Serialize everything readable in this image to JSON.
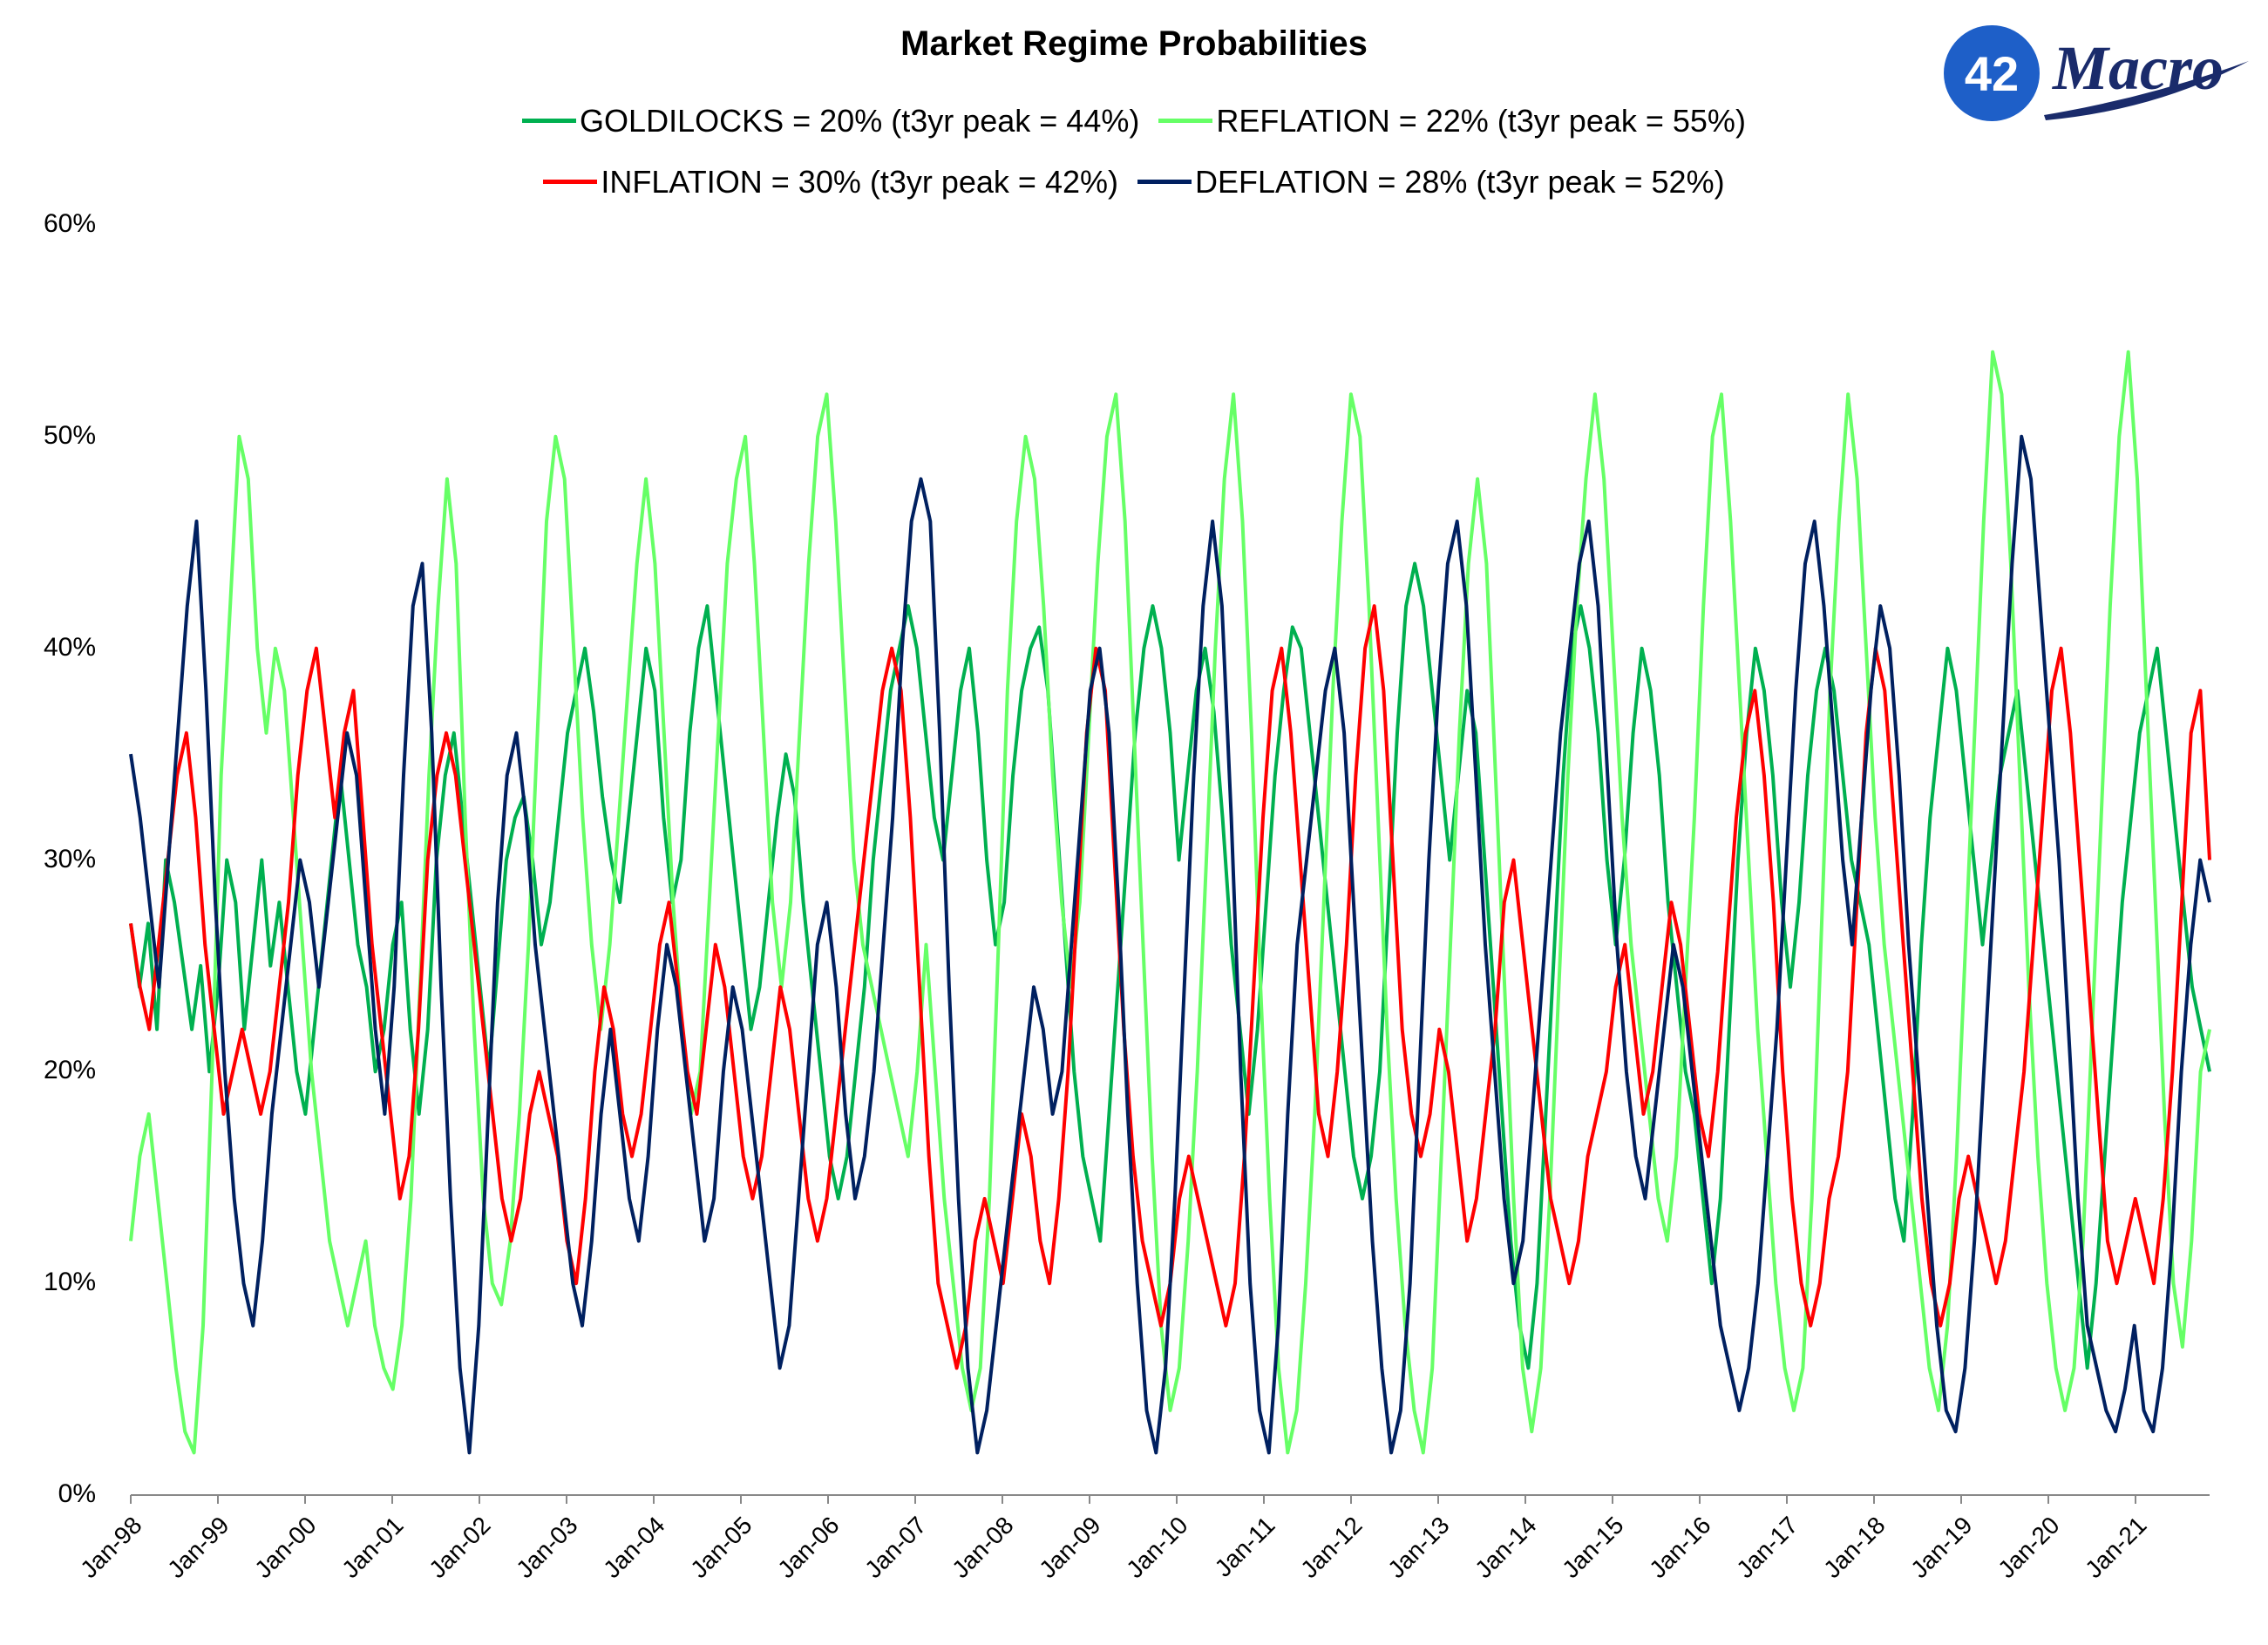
{
  "chart_data": {
    "type": "line",
    "title": "Market Regime Probabilities",
    "xlabel": "",
    "ylabel": "",
    "ylim": [
      0,
      0.6
    ],
    "yticks": [
      "0%",
      "10%",
      "20%",
      "30%",
      "40%",
      "50%",
      "60%"
    ],
    "x_range": [
      "1998-01",
      "2021-11"
    ],
    "x_ticks": [
      "Jan-98",
      "Jan-99",
      "Jan-00",
      "Jan-01",
      "Jan-02",
      "Jan-03",
      "Jan-04",
      "Jan-05",
      "Jan-06",
      "Jan-07",
      "Jan-08",
      "Jan-09",
      "Jan-10",
      "Jan-11",
      "Jan-12",
      "Jan-13",
      "Jan-14",
      "Jan-15",
      "Jan-16",
      "Jan-17",
      "Jan-18",
      "Jan-19",
      "Jan-20",
      "Jan-21"
    ],
    "grid": false,
    "legend_position": "top-center",
    "series": [
      {
        "name": "GOLDILOCKS",
        "legend": "GOLDILOCKS = 20% (t3yr peak = 44%)",
        "color": "#00b050",
        "values": [
          0.27,
          0.24,
          0.27,
          0.22,
          0.3,
          0.28,
          0.25,
          0.22,
          0.25,
          0.2,
          0.24,
          0.3,
          0.28,
          0.22,
          0.26,
          0.3,
          0.25,
          0.28,
          0.24,
          0.2,
          0.18,
          0.22,
          0.26,
          0.3,
          0.34,
          0.3,
          0.26,
          0.24,
          0.2,
          0.22,
          0.26,
          0.28,
          0.22,
          0.18,
          0.22,
          0.3,
          0.34,
          0.36,
          0.32,
          0.28,
          0.24,
          0.2,
          0.25,
          0.3,
          0.32,
          0.33,
          0.3,
          0.26,
          0.28,
          0.32,
          0.36,
          0.38,
          0.4,
          0.37,
          0.33,
          0.3,
          0.28,
          0.32,
          0.36,
          0.4,
          0.38,
          0.32,
          0.28,
          0.3,
          0.36,
          0.4,
          0.42,
          0.38,
          0.34,
          0.3,
          0.26,
          0.22,
          0.24,
          0.28,
          0.32,
          0.35,
          0.33,
          0.28,
          0.24,
          0.2,
          0.16,
          0.14,
          0.16,
          0.2,
          0.24,
          0.3,
          0.34,
          0.38,
          0.4,
          0.42,
          0.4,
          0.36,
          0.32,
          0.3,
          0.34,
          0.38,
          0.4,
          0.36,
          0.3,
          0.26,
          0.28,
          0.34,
          0.38,
          0.4,
          0.41,
          0.38,
          0.32,
          0.26,
          0.2,
          0.16,
          0.14,
          0.12,
          0.18,
          0.24,
          0.3,
          0.36,
          0.4,
          0.42,
          0.4,
          0.36,
          0.3,
          0.34,
          0.38,
          0.4,
          0.37,
          0.32,
          0.26,
          0.22,
          0.18,
          0.22,
          0.28,
          0.34,
          0.38,
          0.41,
          0.4,
          0.36,
          0.32,
          0.28,
          0.24,
          0.2,
          0.16,
          0.14,
          0.16,
          0.2,
          0.28,
          0.36,
          0.42,
          0.44,
          0.42,
          0.38,
          0.34,
          0.3,
          0.34,
          0.38,
          0.36,
          0.3,
          0.24,
          0.18,
          0.12,
          0.08,
          0.06,
          0.1,
          0.18,
          0.26,
          0.34,
          0.4,
          0.42,
          0.4,
          0.36,
          0.3,
          0.26,
          0.3,
          0.36,
          0.4,
          0.38,
          0.34,
          0.28,
          0.24,
          0.2,
          0.18,
          0.14,
          0.1,
          0.14,
          0.22,
          0.3,
          0.36,
          0.4,
          0.38,
          0.34,
          0.28,
          0.24,
          0.28,
          0.34,
          0.38,
          0.4,
          0.38,
          0.34,
          0.3,
          0.28,
          0.26,
          0.22,
          0.18,
          0.14,
          0.12,
          0.18,
          0.26,
          0.32,
          0.36,
          0.4,
          0.38,
          0.34,
          0.3,
          0.26,
          0.3,
          0.34,
          0.36,
          0.38,
          0.34,
          0.3,
          0.26,
          0.22,
          0.18,
          0.14,
          0.1,
          0.06,
          0.1,
          0.16,
          0.22,
          0.28,
          0.32,
          0.36,
          0.38,
          0.4,
          0.36,
          0.32,
          0.28,
          0.24,
          0.22,
          0.2
        ]
      },
      {
        "name": "REFLATION",
        "legend": "REFLATION = 22% (t3yr peak = 55%)",
        "color": "#66ff66",
        "values": [
          0.12,
          0.16,
          0.18,
          0.14,
          0.1,
          0.06,
          0.03,
          0.02,
          0.08,
          0.2,
          0.34,
          0.42,
          0.5,
          0.48,
          0.4,
          0.36,
          0.4,
          0.38,
          0.32,
          0.26,
          0.2,
          0.16,
          0.12,
          0.1,
          0.08,
          0.1,
          0.12,
          0.08,
          0.06,
          0.05,
          0.08,
          0.14,
          0.24,
          0.34,
          0.42,
          0.48,
          0.44,
          0.32,
          0.22,
          0.14,
          0.1,
          0.09,
          0.12,
          0.18,
          0.26,
          0.36,
          0.46,
          0.5,
          0.48,
          0.4,
          0.32,
          0.26,
          0.22,
          0.26,
          0.32,
          0.38,
          0.44,
          0.48,
          0.44,
          0.36,
          0.28,
          0.22,
          0.18,
          0.2,
          0.28,
          0.36,
          0.44,
          0.48,
          0.5,
          0.44,
          0.36,
          0.28,
          0.24,
          0.28,
          0.36,
          0.44,
          0.5,
          0.52,
          0.46,
          0.38,
          0.3,
          0.26,
          0.24,
          0.22,
          0.2,
          0.18,
          0.16,
          0.2,
          0.26,
          0.2,
          0.14,
          0.1,
          0.06,
          0.04,
          0.06,
          0.14,
          0.26,
          0.38,
          0.46,
          0.5,
          0.48,
          0.42,
          0.34,
          0.28,
          0.24,
          0.28,
          0.36,
          0.44,
          0.5,
          0.52,
          0.46,
          0.36,
          0.26,
          0.16,
          0.08,
          0.04,
          0.06,
          0.12,
          0.2,
          0.3,
          0.4,
          0.48,
          0.52,
          0.46,
          0.36,
          0.24,
          0.14,
          0.06,
          0.02,
          0.04,
          0.1,
          0.18,
          0.28,
          0.38,
          0.46,
          0.52,
          0.5,
          0.42,
          0.32,
          0.22,
          0.14,
          0.08,
          0.04,
          0.02,
          0.06,
          0.16,
          0.26,
          0.36,
          0.44,
          0.48,
          0.44,
          0.34,
          0.24,
          0.14,
          0.06,
          0.03,
          0.06,
          0.14,
          0.24,
          0.34,
          0.42,
          0.48,
          0.52,
          0.48,
          0.4,
          0.32,
          0.26,
          0.22,
          0.18,
          0.14,
          0.12,
          0.16,
          0.24,
          0.32,
          0.42,
          0.5,
          0.52,
          0.46,
          0.38,
          0.3,
          0.22,
          0.16,
          0.1,
          0.06,
          0.04,
          0.06,
          0.14,
          0.26,
          0.38,
          0.46,
          0.52,
          0.48,
          0.4,
          0.32,
          0.26,
          0.22,
          0.18,
          0.14,
          0.1,
          0.06,
          0.04,
          0.08,
          0.16,
          0.26,
          0.36,
          0.46,
          0.54,
          0.52,
          0.44,
          0.34,
          0.24,
          0.16,
          0.1,
          0.06,
          0.04,
          0.06,
          0.12,
          0.22,
          0.32,
          0.42,
          0.5,
          0.54,
          0.48,
          0.38,
          0.28,
          0.18,
          0.1,
          0.07,
          0.12,
          0.2,
          0.22
        ]
      },
      {
        "name": "INFLATION",
        "legend": "INFLATION = 30% (t3yr peak = 42%)",
        "color": "#ff0000",
        "values": [
          0.27,
          0.24,
          0.22,
          0.26,
          0.3,
          0.34,
          0.36,
          0.32,
          0.26,
          0.22,
          0.18,
          0.2,
          0.22,
          0.2,
          0.18,
          0.2,
          0.24,
          0.28,
          0.34,
          0.38,
          0.4,
          0.36,
          0.32,
          0.36,
          0.38,
          0.32,
          0.26,
          0.22,
          0.18,
          0.14,
          0.16,
          0.22,
          0.3,
          0.34,
          0.36,
          0.34,
          0.3,
          0.26,
          0.22,
          0.18,
          0.14,
          0.12,
          0.14,
          0.18,
          0.2,
          0.18,
          0.16,
          0.12,
          0.1,
          0.14,
          0.2,
          0.24,
          0.22,
          0.18,
          0.16,
          0.18,
          0.22,
          0.26,
          0.28,
          0.24,
          0.2,
          0.18,
          0.22,
          0.26,
          0.24,
          0.2,
          0.16,
          0.14,
          0.16,
          0.2,
          0.24,
          0.22,
          0.18,
          0.14,
          0.12,
          0.14,
          0.18,
          0.22,
          0.26,
          0.3,
          0.34,
          0.38,
          0.4,
          0.38,
          0.32,
          0.24,
          0.16,
          0.1,
          0.08,
          0.06,
          0.08,
          0.12,
          0.14,
          0.12,
          0.1,
          0.14,
          0.18,
          0.16,
          0.12,
          0.1,
          0.14,
          0.2,
          0.28,
          0.36,
          0.4,
          0.38,
          0.3,
          0.22,
          0.16,
          0.12,
          0.1,
          0.08,
          0.1,
          0.14,
          0.16,
          0.14,
          0.12,
          0.1,
          0.08,
          0.1,
          0.16,
          0.24,
          0.32,
          0.38,
          0.4,
          0.36,
          0.3,
          0.24,
          0.18,
          0.16,
          0.2,
          0.26,
          0.34,
          0.4,
          0.42,
          0.38,
          0.3,
          0.22,
          0.18,
          0.16,
          0.18,
          0.22,
          0.2,
          0.16,
          0.12,
          0.14,
          0.18,
          0.22,
          0.28,
          0.3,
          0.26,
          0.22,
          0.18,
          0.14,
          0.12,
          0.1,
          0.12,
          0.16,
          0.18,
          0.2,
          0.24,
          0.26,
          0.22,
          0.18,
          0.2,
          0.24,
          0.28,
          0.26,
          0.22,
          0.18,
          0.16,
          0.2,
          0.26,
          0.32,
          0.36,
          0.38,
          0.34,
          0.28,
          0.2,
          0.14,
          0.1,
          0.08,
          0.1,
          0.14,
          0.16,
          0.2,
          0.28,
          0.36,
          0.4,
          0.38,
          0.32,
          0.26,
          0.2,
          0.14,
          0.1,
          0.08,
          0.1,
          0.14,
          0.16,
          0.14,
          0.12,
          0.1,
          0.12,
          0.16,
          0.2,
          0.26,
          0.32,
          0.38,
          0.4,
          0.36,
          0.3,
          0.24,
          0.18,
          0.12,
          0.1,
          0.12,
          0.14,
          0.12,
          0.1,
          0.14,
          0.2,
          0.28,
          0.36,
          0.38,
          0.3
        ]
      },
      {
        "name": "DEFLATION",
        "legend": "DEFLATION = 28% (t3yr peak = 52%)",
        "color": "#002060",
        "values": [
          0.35,
          0.32,
          0.28,
          0.24,
          0.3,
          0.36,
          0.42,
          0.46,
          0.38,
          0.28,
          0.2,
          0.14,
          0.1,
          0.08,
          0.12,
          0.18,
          0.22,
          0.26,
          0.3,
          0.28,
          0.24,
          0.28,
          0.32,
          0.36,
          0.34,
          0.28,
          0.22,
          0.18,
          0.24,
          0.34,
          0.42,
          0.44,
          0.36,
          0.24,
          0.14,
          0.06,
          0.02,
          0.08,
          0.18,
          0.28,
          0.34,
          0.36,
          0.32,
          0.26,
          0.22,
          0.18,
          0.14,
          0.1,
          0.08,
          0.12,
          0.18,
          0.22,
          0.18,
          0.14,
          0.12,
          0.16,
          0.22,
          0.26,
          0.24,
          0.2,
          0.16,
          0.12,
          0.14,
          0.2,
          0.24,
          0.22,
          0.18,
          0.14,
          0.1,
          0.06,
          0.08,
          0.14,
          0.2,
          0.26,
          0.28,
          0.24,
          0.18,
          0.14,
          0.16,
          0.2,
          0.26,
          0.32,
          0.4,
          0.46,
          0.48,
          0.46,
          0.36,
          0.24,
          0.14,
          0.06,
          0.02,
          0.04,
          0.08,
          0.12,
          0.16,
          0.2,
          0.24,
          0.22,
          0.18,
          0.2,
          0.26,
          0.32,
          0.38,
          0.4,
          0.36,
          0.28,
          0.18,
          0.1,
          0.04,
          0.02,
          0.06,
          0.14,
          0.24,
          0.34,
          0.42,
          0.46,
          0.42,
          0.32,
          0.2,
          0.1,
          0.04,
          0.02,
          0.08,
          0.18,
          0.26,
          0.3,
          0.34,
          0.38,
          0.4,
          0.36,
          0.28,
          0.2,
          0.12,
          0.06,
          0.02,
          0.04,
          0.1,
          0.2,
          0.3,
          0.38,
          0.44,
          0.46,
          0.42,
          0.34,
          0.26,
          0.2,
          0.14,
          0.1,
          0.12,
          0.18,
          0.24,
          0.3,
          0.36,
          0.4,
          0.44,
          0.46,
          0.42,
          0.34,
          0.26,
          0.2,
          0.16,
          0.14,
          0.18,
          0.22,
          0.26,
          0.24,
          0.2,
          0.16,
          0.12,
          0.08,
          0.06,
          0.04,
          0.06,
          0.1,
          0.16,
          0.22,
          0.3,
          0.38,
          0.44,
          0.46,
          0.42,
          0.36,
          0.3,
          0.26,
          0.32,
          0.38,
          0.42,
          0.4,
          0.34,
          0.26,
          0.2,
          0.14,
          0.08,
          0.04,
          0.03,
          0.06,
          0.12,
          0.2,
          0.28,
          0.36,
          0.44,
          0.5,
          0.48,
          0.42,
          0.36,
          0.3,
          0.22,
          0.14,
          0.08,
          0.06,
          0.04,
          0.03,
          0.05,
          0.08,
          0.04,
          0.03,
          0.06,
          0.12,
          0.2,
          0.26,
          0.3,
          0.28
        ]
      }
    ]
  },
  "logo": {
    "number": "42",
    "wordmark": "Macro"
  }
}
